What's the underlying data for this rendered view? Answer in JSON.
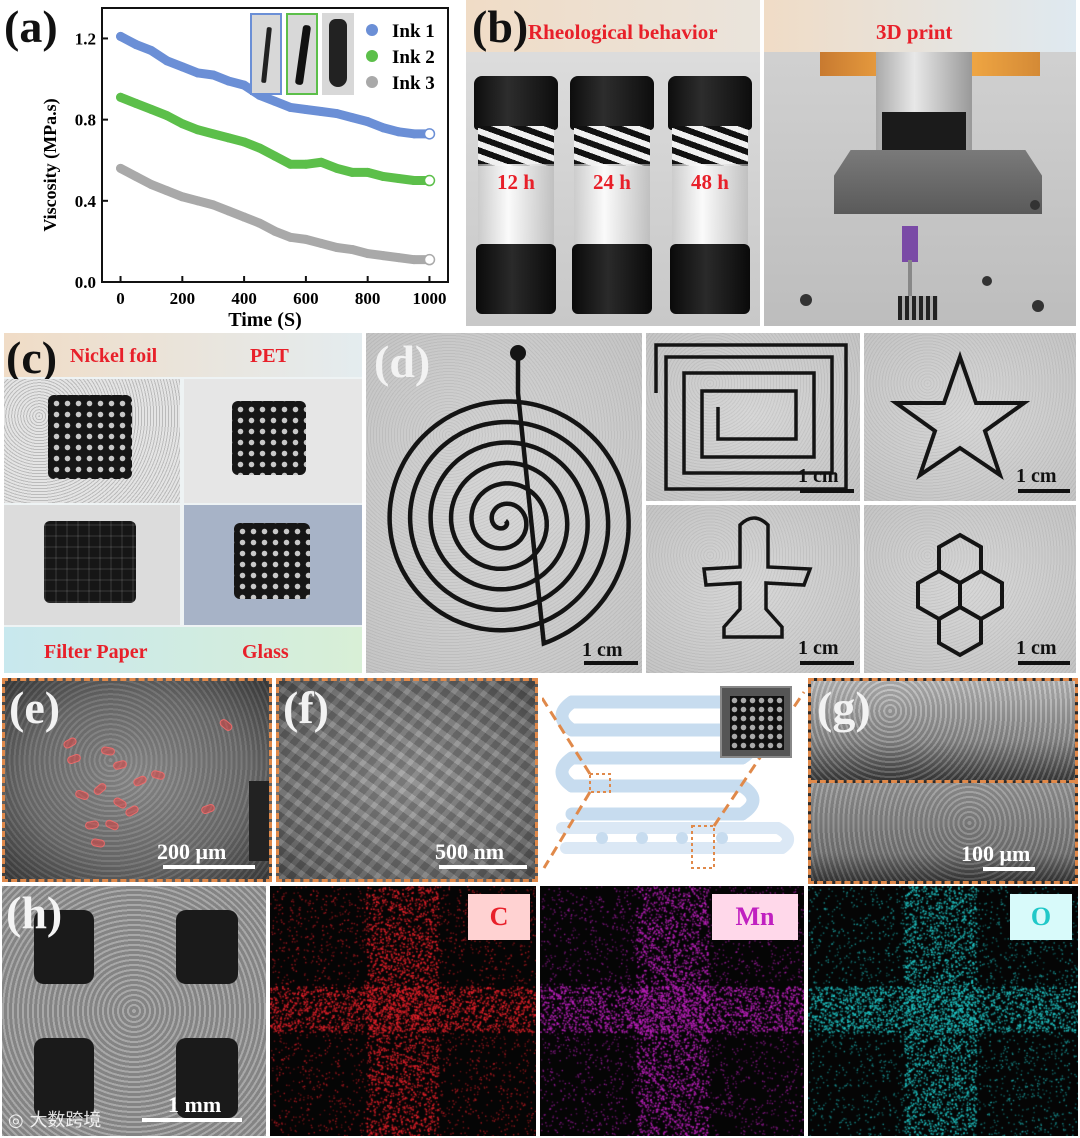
{
  "panels": {
    "a": "(a)",
    "b": "(b)",
    "c": "(c)",
    "d": "(d)",
    "e": "(e)",
    "f": "(f)",
    "g": "(g)",
    "h": "(h)"
  },
  "chart_data": {
    "type": "scatter",
    "xlabel": "Time (S)",
    "ylabel": "Viscosity (MPa.s)",
    "xlim": [
      -60,
      1060
    ],
    "ylim": [
      0,
      1.35
    ],
    "xticks": [
      "0",
      "200",
      "400",
      "600",
      "800",
      "1000"
    ],
    "yticks": [
      "0.0",
      "0.4",
      "0.8",
      "1.2"
    ],
    "series": [
      {
        "name": "Ink 1",
        "color": "#6b8fd6",
        "x": [
          0,
          50,
          100,
          150,
          200,
          250,
          300,
          350,
          400,
          450,
          500,
          550,
          600,
          650,
          700,
          750,
          800,
          850,
          900,
          950,
          1000
        ],
        "values": [
          1.21,
          1.17,
          1.14,
          1.09,
          1.06,
          1.03,
          1.02,
          0.99,
          0.97,
          0.92,
          0.89,
          0.86,
          0.85,
          0.84,
          0.83,
          0.81,
          0.79,
          0.76,
          0.74,
          0.73,
          0.73
        ]
      },
      {
        "name": "Ink 2",
        "color": "#5cbf4a",
        "x": [
          0,
          50,
          100,
          150,
          200,
          250,
          300,
          350,
          400,
          450,
          500,
          550,
          600,
          650,
          700,
          750,
          800,
          850,
          900,
          950,
          1000
        ],
        "values": [
          0.91,
          0.88,
          0.85,
          0.82,
          0.78,
          0.75,
          0.73,
          0.71,
          0.69,
          0.66,
          0.62,
          0.58,
          0.58,
          0.59,
          0.56,
          0.54,
          0.54,
          0.52,
          0.51,
          0.5,
          0.5
        ]
      },
      {
        "name": "Ink 3",
        "color": "#a9a9a9",
        "x": [
          0,
          50,
          100,
          150,
          200,
          250,
          300,
          350,
          400,
          450,
          500,
          550,
          600,
          650,
          700,
          750,
          800,
          850,
          900,
          950,
          1000
        ],
        "values": [
          0.56,
          0.52,
          0.48,
          0.45,
          0.42,
          0.4,
          0.38,
          0.35,
          0.32,
          0.29,
          0.25,
          0.22,
          0.21,
          0.19,
          0.17,
          0.16,
          0.14,
          0.13,
          0.12,
          0.11,
          0.11
        ]
      }
    ]
  },
  "b": {
    "title_left": "Rheological behavior",
    "title_right": "3D print",
    "vials": [
      "12 h",
      "24 h",
      "48 h"
    ]
  },
  "c": {
    "labels": [
      "Nickel foil",
      "PET",
      "Filter Paper",
      "Glass"
    ]
  },
  "d": {
    "scalebar": "1 cm"
  },
  "e": {
    "scalebar": "200 μm"
  },
  "f": {
    "scalebar": "500 nm"
  },
  "g": {
    "scalebar": "100 μm"
  },
  "h": {
    "scalebar": "1 mm",
    "elements": [
      "C",
      "Mn",
      "O"
    ],
    "element_colors": [
      "#e8202a",
      "#c020c0",
      "#20c8c8"
    ]
  },
  "watermark": "大数跨境"
}
